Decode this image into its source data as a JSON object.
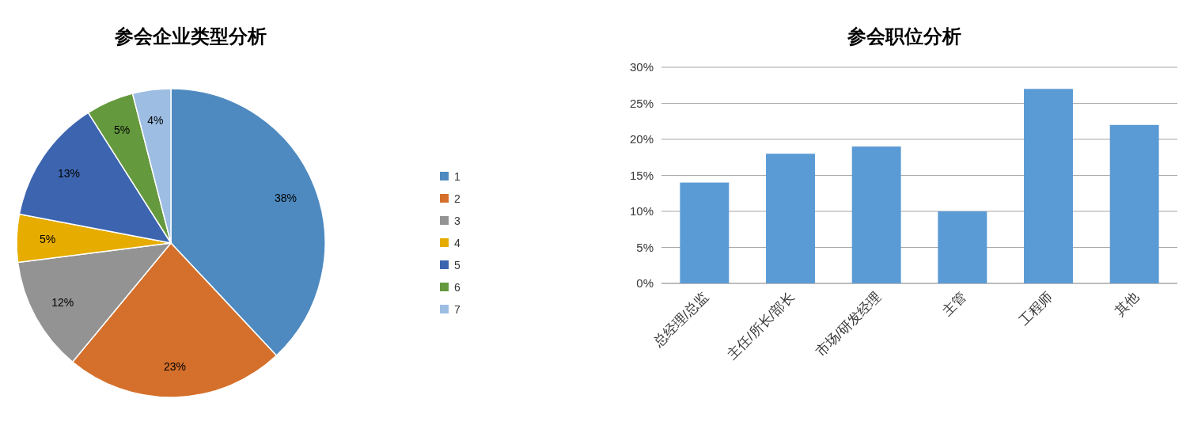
{
  "chart_data": [
    {
      "type": "pie",
      "title": "参会企业类型分析",
      "categories": [
        "1",
        "2",
        "3",
        "4",
        "5",
        "6",
        "7"
      ],
      "values": [
        38,
        23,
        12,
        5,
        13,
        5,
        4
      ],
      "colors": [
        "#4e8ac0",
        "#d4702b",
        "#939393",
        "#e6ac00",
        "#3d65af",
        "#64993d",
        "#9dbde3"
      ],
      "value_labels": [
        "38%",
        "23%",
        "12%",
        "5%",
        "13%",
        "5%",
        "4%"
      ],
      "legend": "right"
    },
    {
      "type": "bar",
      "title": "参会职位分析",
      "categories": [
        "总经理/总监",
        "主任/所长/部长",
        "市场/研发经理",
        "主管",
        "工程师",
        "其他"
      ],
      "values": [
        14,
        18,
        19,
        10,
        27,
        22
      ],
      "color": "#5b9bd5",
      "ylim": [
        0,
        30
      ],
      "yticks": [
        {
          "value": 0,
          "label": "0%"
        },
        {
          "value": 5,
          "label": "5%"
        },
        {
          "value": 10,
          "label": "10%"
        },
        {
          "value": 15,
          "label": "15%"
        },
        {
          "value": 20,
          "label": "20%"
        },
        {
          "value": 25,
          "label": "25%"
        },
        {
          "value": 30,
          "label": "30%"
        }
      ],
      "grid": "y"
    }
  ]
}
